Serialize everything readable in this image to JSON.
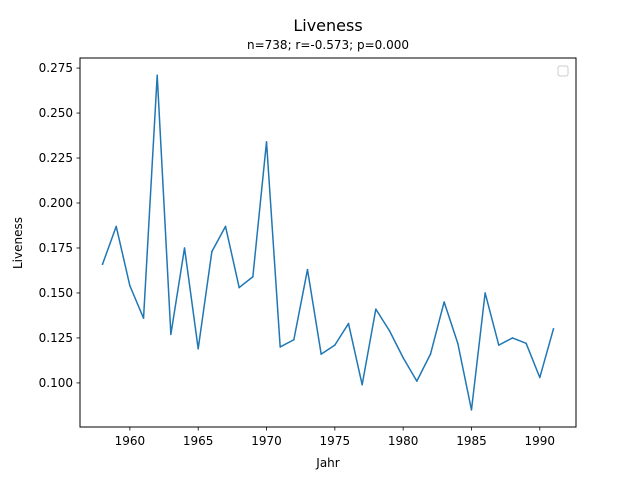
{
  "chart_data": {
    "type": "line",
    "title": "Liveness",
    "subtitle": "n=738; r=-0.573; p=0.000",
    "xlabel": "Jahr",
    "ylabel": "Liveness",
    "xlim": [
      1956.35,
      1992.65
    ],
    "ylim": [
      0.0755,
      0.2806
    ],
    "xticks": [
      1960,
      1965,
      1970,
      1975,
      1980,
      1985,
      1990
    ],
    "xtick_labels": [
      "1960",
      "1965",
      "1970",
      "1975",
      "1980",
      "1985",
      "1990"
    ],
    "yticks": [
      0.1,
      0.125,
      0.15,
      0.175,
      0.2,
      0.225,
      0.25,
      0.275
    ],
    "ytick_labels": [
      "0.100",
      "0.125",
      "0.150",
      "0.175",
      "0.200",
      "0.225",
      "0.250",
      "0.275"
    ],
    "grid": false,
    "legend": "top-right",
    "series": [
      {
        "color": "#1f77b4",
        "x": [
          1958,
          1959,
          1960,
          1961,
          1962,
          1963,
          1964,
          1965,
          1966,
          1967,
          1968,
          1969,
          1970,
          1971,
          1972,
          1973,
          1974,
          1975,
          1976,
          1977,
          1978,
          1979,
          1980,
          1981,
          1982,
          1983,
          1984,
          1985,
          1986,
          1987,
          1988,
          1989,
          1990,
          1991
        ],
        "y": [
          0.166,
          0.187,
          0.154,
          0.136,
          0.271,
          0.127,
          0.175,
          0.119,
          0.173,
          0.187,
          0.153,
          0.159,
          0.234,
          0.12,
          0.124,
          0.163,
          0.116,
          0.121,
          0.133,
          0.099,
          0.141,
          0.129,
          0.114,
          0.101,
          0.116,
          0.145,
          0.122,
          0.085,
          0.15,
          0.121,
          0.125,
          0.122,
          0.103,
          0.13
        ]
      }
    ]
  }
}
